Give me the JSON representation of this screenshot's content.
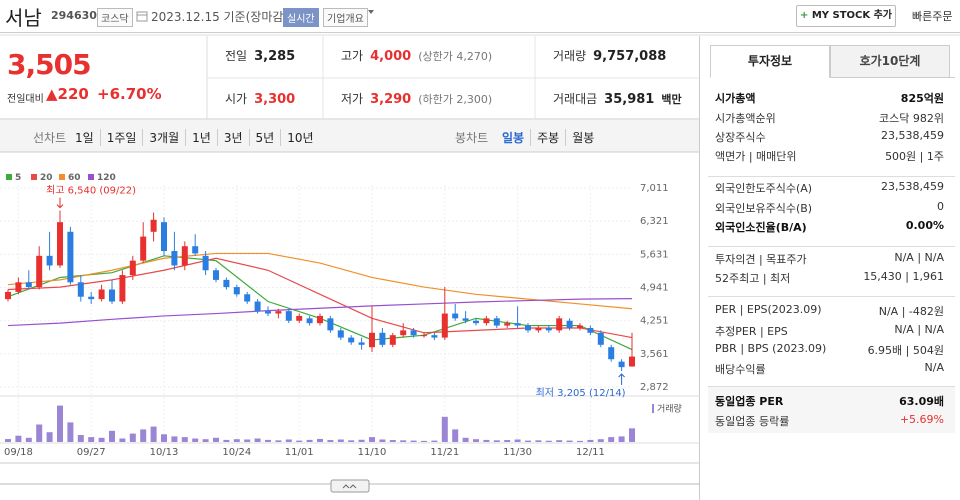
{
  "header": {
    "name": "서남",
    "code": "294630",
    "market": "코스닥",
    "date": "2023.12.15 기준(장마감)",
    "realtime": "실시간",
    "overview": "기업개요",
    "mystock": "MY STOCK 추가",
    "quick_order": "빠른주문"
  },
  "price": {
    "current": "3,505",
    "change_label": "전일대비",
    "change": "▲220",
    "change_pct": "+6.70%"
  },
  "quote_table": {
    "rows": [
      [
        {
          "label": "전일",
          "value": "3,285"
        },
        {
          "label": "고가",
          "value": "4,000",
          "note": "(상한가 4,270)",
          "color": "#e8302f"
        },
        {
          "label": "거래량",
          "value": "9,757,088"
        }
      ],
      [
        {
          "label": "시가",
          "value": "3,300",
          "color": "#e8302f"
        },
        {
          "label": "저가",
          "value": "3,290",
          "note": "(하한가 2,300)",
          "color": "#e8302f"
        },
        {
          "label": "거래대금",
          "value": "35,981",
          "note": "백만"
        }
      ]
    ]
  },
  "tabs": {
    "line_label": "선차트",
    "line_periods": [
      "1일",
      "1주일",
      "3개월",
      "1년",
      "3년",
      "5년",
      "10년"
    ],
    "candle_label": "봉차트",
    "candle_periods": [
      "일봉",
      "주봉",
      "월봉"
    ]
  },
  "chart_data": {
    "type": "candlestick",
    "categories": [
      null,
      "09/18",
      null,
      null,
      null,
      null,
      null,
      null,
      "09/27",
      null,
      null,
      null,
      null,
      null,
      null,
      "10/13",
      null,
      null,
      null,
      null,
      null,
      null,
      "10/24",
      null,
      null,
      null,
      null,
      null,
      "11/01",
      null,
      null,
      null,
      null,
      null,
      null,
      "11/10",
      null,
      null,
      null,
      null,
      null,
      null,
      "11/21",
      null,
      null,
      null,
      null,
      null,
      null,
      "11/30",
      null,
      null,
      null,
      null,
      null,
      null,
      "12/11",
      null,
      null,
      null,
      null
    ],
    "open": [
      4700,
      4850,
      5050,
      4950,
      5600,
      5400,
      6100,
      5050,
      4750,
      4700,
      4900,
      4650,
      5200,
      5500,
      6100,
      6300,
      5700,
      5400,
      5800,
      5600,
      5300,
      5100,
      4950,
      4800,
      4650,
      4450,
      4400,
      4450,
      4250,
      4300,
      4200,
      4300,
      4050,
      3900,
      3800,
      3700,
      4000,
      3750,
      3950,
      4050,
      3950,
      3950,
      3900,
      4400,
      4300,
      4250,
      4200,
      4300,
      4150,
      4200,
      4150,
      4050,
      4100,
      4050,
      4250,
      4100,
      4100,
      4000,
      3700,
      3400,
      3300
    ],
    "high": [
      4900,
      5150,
      5300,
      5800,
      6100,
      6540,
      6200,
      5200,
      4850,
      5000,
      5100,
      5300,
      5600,
      6300,
      6500,
      6400,
      6100,
      5900,
      6050,
      5700,
      5350,
      5150,
      5000,
      4850,
      4700,
      4550,
      4500,
      4500,
      4400,
      4350,
      4400,
      4350,
      4100,
      3950,
      3900,
      4550,
      4100,
      4000,
      4200,
      4100,
      4000,
      4000,
      4950,
      4600,
      4450,
      4300,
      4350,
      4350,
      4250,
      4550,
      4200,
      4150,
      4150,
      4350,
      4300,
      4200,
      4150,
      4050,
      3750,
      3450,
      4000
    ],
    "low": [
      4650,
      4800,
      4900,
      4900,
      5300,
      5350,
      5000,
      4650,
      4600,
      4650,
      4600,
      4600,
      5100,
      5450,
      5900,
      5600,
      5300,
      5300,
      5600,
      5200,
      5050,
      4900,
      4750,
      4600,
      4400,
      4350,
      4300,
      4200,
      4200,
      4150,
      4150,
      4000,
      3850,
      3750,
      3650,
      3600,
      3700,
      3700,
      3900,
      3900,
      3900,
      3850,
      3850,
      4250,
      4200,
      4150,
      4150,
      4100,
      4100,
      4100,
      4000,
      4000,
      4000,
      4000,
      4050,
      4050,
      3950,
      3700,
      3400,
      3205,
      3290
    ],
    "close": [
      4850,
      5050,
      4950,
      5600,
      5400,
      6300,
      5050,
      4750,
      4700,
      4900,
      4650,
      5200,
      5500,
      6000,
      6350,
      5700,
      5400,
      5800,
      5650,
      5300,
      5100,
      4950,
      4800,
      4650,
      4450,
      4400,
      4450,
      4250,
      4350,
      4200,
      4350,
      4050,
      3900,
      3800,
      3750,
      4000,
      3750,
      3950,
      4050,
      3950,
      3950,
      3900,
      4400,
      4300,
      4250,
      4200,
      4300,
      4150,
      4200,
      4150,
      4050,
      4100,
      4050,
      4300,
      4100,
      4150,
      4000,
      3750,
      3450,
      3285,
      3505
    ],
    "up_color": "#e8302f",
    "down_color": "#2a7de1",
    "ylim": [
      2706,
      7177
    ],
    "yticks": [
      {
        "value": 2872,
        "label": "2,872"
      },
      {
        "value": 3561,
        "label": "3,561"
      },
      {
        "value": 4251,
        "label": "4,251"
      },
      {
        "value": 4941,
        "label": "4,941"
      },
      {
        "value": 5631,
        "label": "5,631"
      },
      {
        "value": 6321,
        "label": "6,321"
      },
      {
        "value": 7011,
        "label": "7,011"
      }
    ],
    "grid": true,
    "high_label": "최고 6,540 (09/22)",
    "low_label": "최저 3,205 (12/14)",
    "moving_averages": [
      {
        "name": "5",
        "color": "#3cab3c",
        "x": [
          0,
          5,
          10,
          15,
          20,
          25,
          30,
          35,
          40,
          45,
          50,
          55,
          60
        ],
        "values": [
          4750,
          5150,
          5250,
          5600,
          5500,
          4650,
          4300,
          3850,
          3950,
          4300,
          4150,
          4150,
          3650
        ]
      },
      {
        "name": "20",
        "color": "#e84a4a",
        "x": [
          0,
          5,
          10,
          15,
          20,
          25,
          30,
          35,
          40,
          45,
          50,
          55,
          60
        ],
        "values": [
          4900,
          4950,
          5100,
          5300,
          5550,
          5300,
          4800,
          4300,
          4000,
          4050,
          4100,
          4100,
          3900
        ]
      },
      {
        "name": "60",
        "color": "#f0902a",
        "x": [
          0,
          5,
          10,
          15,
          20,
          25,
          30,
          35,
          40,
          45,
          50,
          55,
          60
        ],
        "values": [
          5000,
          5100,
          5300,
          5550,
          5650,
          5650,
          5450,
          5150,
          4950,
          4800,
          4700,
          4600,
          4500
        ]
      },
      {
        "name": "120",
        "color": "#9a4fd0",
        "x": [
          0,
          5,
          10,
          15,
          20,
          25,
          30,
          35,
          40,
          45,
          50,
          55,
          60
        ],
        "values": [
          4150,
          4200,
          4280,
          4350,
          4400,
          4460,
          4510,
          4560,
          4600,
          4640,
          4670,
          4700,
          4710
        ]
      }
    ],
    "volume": {
      "name": "거래량",
      "color": "#9b86d6",
      "ylim": [
        0,
        30
      ],
      "values": [
        2.1,
        4.5,
        3.0,
        12.5,
        7.0,
        26.0,
        14.0,
        5.0,
        3.5,
        3.0,
        8.0,
        2.5,
        6.0,
        9.0,
        11.0,
        5.5,
        4.0,
        3.5,
        2.5,
        2.0,
        3.0,
        1.5,
        2.0,
        1.8,
        2.5,
        1.5,
        1.2,
        1.8,
        1.0,
        1.5,
        2.2,
        1.4,
        1.8,
        1.2,
        1.6,
        3.5,
        1.8,
        1.4,
        1.2,
        1.0,
        0.8,
        1.0,
        18.0,
        9.0,
        3.0,
        2.0,
        1.5,
        1.2,
        1.4,
        1.8,
        1.0,
        1.2,
        0.9,
        1.3,
        1.0,
        0.8,
        1.5,
        2.0,
        3.5,
        4.0,
        9.76
      ]
    }
  },
  "side_panel": {
    "tabs": [
      "투자정보",
      "호가10단계"
    ],
    "sections": [
      {
        "rows": [
          {
            "label": "시가총액",
            "value": "825억원",
            "emphasis": true
          },
          {
            "label": "시가총액순위",
            "value": "코스닥 982위"
          },
          {
            "label": "상장주식수",
            "value": "23,538,459"
          },
          {
            "label": "액면가 | 매매단위",
            "value": "500원 | 1주"
          }
        ]
      },
      {
        "rows": [
          {
            "label": "외국인한도주식수(A)",
            "value": "23,538,459"
          },
          {
            "label": "외국인보유주식수(B)",
            "value": "0"
          },
          {
            "label": "외국인소진율(B/A)",
            "value": "0.00%",
            "emphasis": true
          }
        ]
      },
      {
        "rows": [
          {
            "label": "투자의견 | 목표주가",
            "value": "N/A | N/A"
          },
          {
            "label": "52주최고 | 최저",
            "value": "15,430 | 1,961"
          }
        ]
      },
      {
        "rows": [
          {
            "label": "PER | EPS(2023.09)",
            "value": "N/A | -482원"
          },
          {
            "label": "추정PER | EPS",
            "value": "N/A | N/A"
          },
          {
            "label": "PBR | BPS (2023.09)",
            "value": "6.95배 | 504원"
          },
          {
            "label": "배당수익률",
            "value": "N/A"
          }
        ]
      },
      {
        "rows": [
          {
            "label": "동일업종 PER",
            "value": "63.09배",
            "emphasis": true
          },
          {
            "label": "동일업종 등락률",
            "value": "+5.69%",
            "color": "#e8302f"
          }
        ]
      }
    ]
  }
}
